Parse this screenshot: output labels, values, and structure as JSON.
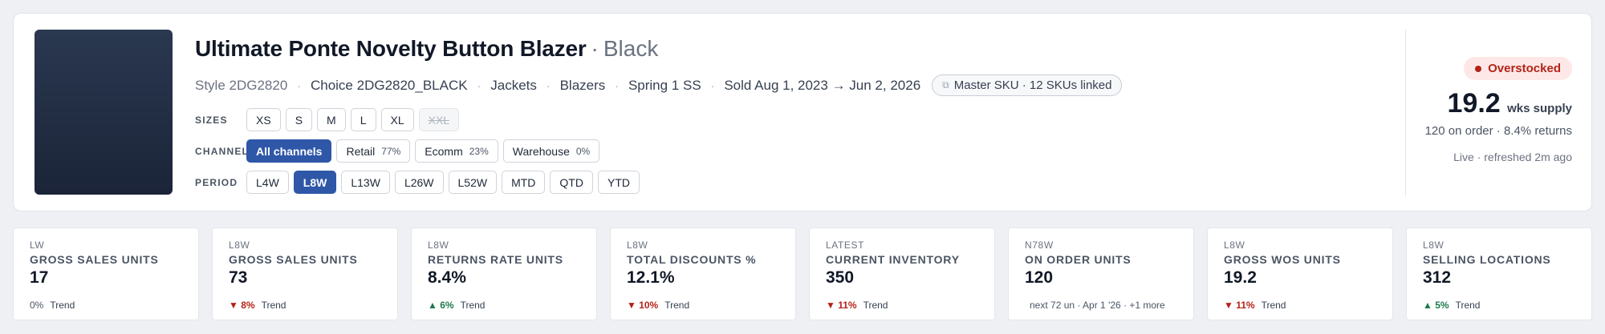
{
  "product": {
    "name": "Ultimate Ponte Novelty Button Blazer",
    "separator": "·",
    "color": "Black",
    "style": "Style 2DG2820",
    "choice": "Choice 2DG2820_BLACK",
    "department": "Jackets",
    "class": "Blazers",
    "season": "Spring 1 SS",
    "sold_range": "Sold Aug 1, 2023 → Jun 2, 2026",
    "meta_separator": "·",
    "sku_pill": "Master SKU · 12 SKUs linked",
    "sku_pill_icon": "link-icon"
  },
  "sizes": {
    "label": "SIZES",
    "options": [
      "XS",
      "S",
      "M",
      "L",
      "XL",
      "XXL"
    ],
    "disabled": "XXL"
  },
  "channel": {
    "label": "CHANNEL",
    "options": [
      {
        "name": "All channels",
        "pct": "",
        "active": true
      },
      {
        "name": "Retail",
        "pct": "77%",
        "active": false
      },
      {
        "name": "Ecomm",
        "pct": "23%",
        "active": false
      },
      {
        "name": "Warehouse",
        "pct": "0%",
        "active": false
      }
    ]
  },
  "period": {
    "label": "PERIOD",
    "options": [
      "L4W",
      "L8W",
      "L13W",
      "L26W",
      "L52W",
      "MTD",
      "QTD",
      "YTD"
    ],
    "selected": "L8W"
  },
  "status": {
    "badge": "Overstocked",
    "badge_color": "#b42318",
    "weeks_supply": "19.2",
    "weeks_label": "wks supply",
    "on_order_returns": "120 on order · 8.4% returns",
    "refresh": "Live · refreshed 2m ago"
  },
  "kpis": [
    {
      "period": "LW",
      "label": "GROSS SALES UNITS",
      "value": "17",
      "delta": "0%",
      "dir": "flat",
      "trend_label": "Trend"
    },
    {
      "period": "L8W",
      "label": "GROSS SALES UNITS",
      "value": "73",
      "delta": "▼ 8%",
      "dir": "down",
      "trend_label": "Trend"
    },
    {
      "period": "L8W",
      "label": "RETURNS RATE UNITS",
      "value": "8.4%",
      "delta": "▲ 6%",
      "dir": "up",
      "trend_label": "Trend"
    },
    {
      "period": "L8W",
      "label": "TOTAL DISCOUNTS %",
      "value": "12.1%",
      "delta": "▼ 10%",
      "dir": "down",
      "trend_label": "Trend"
    },
    {
      "period": "LATEST",
      "label": "CURRENT INVENTORY",
      "value": "350",
      "delta": "▼ 11%",
      "dir": "down",
      "trend_label": "Trend"
    },
    {
      "period": "N78W",
      "label": "ON ORDER UNITS",
      "value": "120",
      "note": "next 72 un · Apr 1 '26 · +1 more"
    },
    {
      "period": "L8W",
      "label": "GROSS WOS UNITS",
      "value": "19.2",
      "delta": "▼ 11%",
      "dir": "down",
      "trend_label": "Trend"
    },
    {
      "period": "L8W",
      "label": "SELLING LOCATIONS",
      "value": "312",
      "delta": "▲ 5%",
      "dir": "up",
      "trend_label": "Trend"
    }
  ],
  "colors": {
    "accent": "#2f57a8",
    "down": "#b42318",
    "up": "#1f7a4d"
  }
}
